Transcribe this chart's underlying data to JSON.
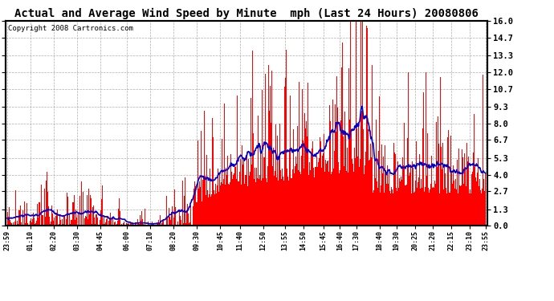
{
  "title": "Actual and Average Wind Speed by Minute  mph (Last 24 Hours) 20080806",
  "copyright": "Copyright 2008 Cartronics.com",
  "ylabel_right": [
    "16.0",
    "14.7",
    "13.3",
    "12.0",
    "10.7",
    "9.3",
    "8.0",
    "6.7",
    "5.3",
    "4.0",
    "2.7",
    "1.3",
    "0.0"
  ],
  "yticks": [
    16.0,
    14.7,
    13.3,
    12.0,
    10.7,
    9.3,
    8.0,
    6.7,
    5.3,
    4.0,
    2.7,
    1.3,
    0.0
  ],
  "ylim": [
    0.0,
    16.0
  ],
  "bar_color": "#ff0000",
  "line_color": "#0000cc",
  "bg_color": "#ffffff",
  "grid_color": "#999999",
  "title_fontsize": 10,
  "copyright_fontsize": 6.5,
  "x_label_fontsize": 6,
  "y_label_fontsize": 7.5
}
